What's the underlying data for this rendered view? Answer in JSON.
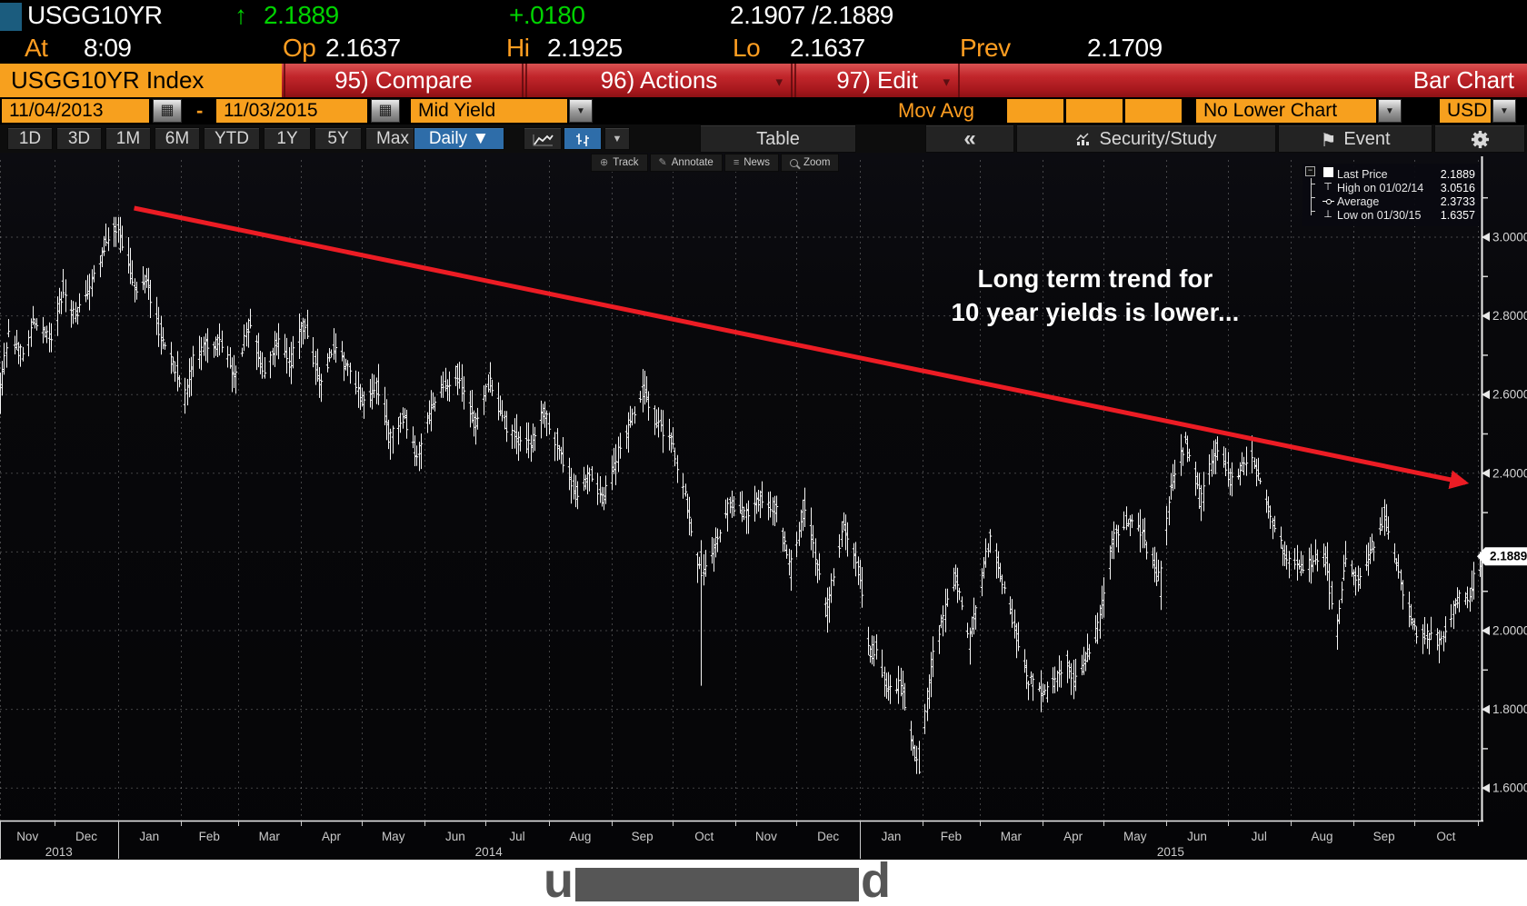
{
  "quote_bar": {
    "ticker": "USGG10YR",
    "direction_arrow": "↑",
    "last": "2.1889",
    "change": "+.0180",
    "bid_ask": "2.1907 /2.1889",
    "at_label": "At",
    "at_time": "8:09",
    "op_label": "Op",
    "open": "2.1637",
    "hi_label": "Hi",
    "high": "2.1925",
    "lo_label": "Lo",
    "low": "2.1637",
    "prev_label": "Prev",
    "prev": "2.1709"
  },
  "menu_bar": {
    "security_tab": "USGG10YR Index",
    "compare": "95) Compare",
    "actions": "96) Actions",
    "edit": "97) Edit",
    "right_label": "Bar Chart"
  },
  "settings_bar": {
    "date_from": "11/04/2013",
    "dash": "-",
    "date_to": "11/03/2015",
    "field": "Mid Yield",
    "mov_avg_label": "Mov Avg",
    "lower_chart": "No Lower Chart",
    "currency": "USD"
  },
  "toolbar": {
    "period_tabs": [
      "1D",
      "3D",
      "1M",
      "6M",
      "YTD",
      "1Y",
      "5Y",
      "Max"
    ],
    "frequency": "Daily ▼",
    "table_label": "Table",
    "collapse_label": "«",
    "security_study_label": "Security/Study",
    "event_label": "Event"
  },
  "chart_tools": [
    "Track",
    "Annotate",
    "News",
    "Zoom"
  ],
  "legend": {
    "items": [
      {
        "icon": "last-price-square",
        "label": "Last Price",
        "value": "2.1889"
      },
      {
        "icon": "high-tick",
        "label": "High on 01/02/14",
        "value": "3.0516"
      },
      {
        "icon": "average-marker",
        "label": "Average",
        "value": "2.3733"
      },
      {
        "icon": "low-tick",
        "label": "Low on 01/30/15",
        "value": "1.6357"
      }
    ]
  },
  "annotation": {
    "line1": "Long term trend for",
    "line2": "10 year yields is lower..."
  },
  "caption": {
    "left_char": "u",
    "right_char": "d"
  },
  "colors": {
    "orange": "#f7a01e",
    "orange_text": "#ff9e21",
    "green": "#00d300",
    "red_bar": "#c2262b",
    "blue": "#2e6da9",
    "bar_white": "#f5f5f5",
    "trend_red": "#ec1c24",
    "grid": "rgba(190,190,190,0.33)"
  },
  "chart_data": {
    "type": "bar",
    "subtype": "ohlc-daily",
    "title": "USGG10YR Index — Mid Yield, Daily, 11/04/2013 - 11/03/2015",
    "x_range": [
      "2013-11-04",
      "2015-11-03"
    ],
    "ylim": [
      1.52,
      3.12
    ],
    "y_major_ticks": [
      3.0,
      2.8,
      2.6,
      2.4,
      2.2,
      2.0,
      1.8,
      1.6
    ],
    "y_minor_ticks": [
      3.1,
      2.9,
      2.7,
      2.5,
      2.3,
      2.1,
      1.9,
      1.7
    ],
    "y_tick_format": "0.0000",
    "month_names": [
      "Jan",
      "Feb",
      "Mar",
      "Apr",
      "May",
      "Jun",
      "Jul",
      "Aug",
      "Sep",
      "Oct",
      "Nov",
      "Dec"
    ],
    "year_labels": [
      "2013",
      "2014",
      "2015"
    ],
    "grid": "dashed",
    "last_price": 2.1889,
    "stats": {
      "last": 2.1889,
      "high": 3.0516,
      "high_date": "2014-01-02",
      "average": 2.3733,
      "low": 1.6357,
      "low_date": "2015-01-30"
    },
    "trend_line": {
      "start": {
        "date": "2014-01-09",
        "value": 3.074
      },
      "end": {
        "date": "2015-10-26",
        "value": 2.376
      }
    },
    "key_days": {
      "2014-01-02": {
        "high": 3.0516,
        "low": 2.96,
        "open": 2.97,
        "close": 3.0
      },
      "2014-10-15": {
        "high": 2.23,
        "low": 1.86,
        "open": 2.2,
        "close": 2.14
      },
      "2015-01-30": {
        "high": 1.72,
        "low": 1.6357,
        "open": 1.7,
        "close": 1.64
      },
      "2015-11-03": {
        "open": 2.1637,
        "high": 2.1925,
        "low": 2.1637,
        "close": 2.1889
      }
    },
    "anchors": [
      [
        "2013-11-04",
        2.61
      ],
      [
        "2013-11-08",
        2.75
      ],
      [
        "2013-11-13",
        2.72
      ],
      [
        "2013-11-15",
        2.7
      ],
      [
        "2013-11-21",
        2.79
      ],
      [
        "2013-11-29",
        2.74
      ],
      [
        "2013-12-05",
        2.87
      ],
      [
        "2013-12-11",
        2.8
      ],
      [
        "2013-12-20",
        2.89
      ],
      [
        "2013-12-26",
        2.99
      ],
      [
        "2013-12-31",
        3.03
      ],
      [
        "2014-01-03",
        3.0
      ],
      [
        "2014-01-10",
        2.86
      ],
      [
        "2014-01-15",
        2.89
      ],
      [
        "2014-01-24",
        2.72
      ],
      [
        "2014-01-31",
        2.64
      ],
      [
        "2014-02-03",
        2.6
      ],
      [
        "2014-02-07",
        2.68
      ],
      [
        "2014-02-13",
        2.73
      ],
      [
        "2014-02-21",
        2.73
      ],
      [
        "2014-02-28",
        2.65
      ],
      [
        "2014-03-07",
        2.79
      ],
      [
        "2014-03-14",
        2.65
      ],
      [
        "2014-03-21",
        2.74
      ],
      [
        "2014-03-27",
        2.68
      ],
      [
        "2014-04-03",
        2.79
      ],
      [
        "2014-04-11",
        2.62
      ],
      [
        "2014-04-17",
        2.72
      ],
      [
        "2014-04-25",
        2.66
      ],
      [
        "2014-05-02",
        2.58
      ],
      [
        "2014-05-09",
        2.62
      ],
      [
        "2014-05-15",
        2.49
      ],
      [
        "2014-05-22",
        2.55
      ],
      [
        "2014-05-28",
        2.44
      ],
      [
        "2014-06-06",
        2.59
      ],
      [
        "2014-06-11",
        2.63
      ],
      [
        "2014-06-17",
        2.65
      ],
      [
        "2014-06-26",
        2.52
      ],
      [
        "2014-07-03",
        2.64
      ],
      [
        "2014-07-11",
        2.52
      ],
      [
        "2014-07-18",
        2.48
      ],
      [
        "2014-07-23",
        2.47
      ],
      [
        "2014-07-30",
        2.56
      ],
      [
        "2014-08-05",
        2.48
      ],
      [
        "2014-08-15",
        2.34
      ],
      [
        "2014-08-22",
        2.4
      ],
      [
        "2014-08-28",
        2.33
      ],
      [
        "2014-09-05",
        2.46
      ],
      [
        "2014-09-11",
        2.54
      ],
      [
        "2014-09-17",
        2.62
      ],
      [
        "2014-09-23",
        2.53
      ],
      [
        "2014-09-30",
        2.49
      ],
      [
        "2014-10-03",
        2.43
      ],
      [
        "2014-10-08",
        2.33
      ],
      [
        "2014-10-15",
        2.14
      ],
      [
        "2014-10-22",
        2.22
      ],
      [
        "2014-10-29",
        2.32
      ],
      [
        "2014-11-07",
        2.3
      ],
      [
        "2014-11-13",
        2.34
      ],
      [
        "2014-11-21",
        2.31
      ],
      [
        "2014-11-28",
        2.16
      ],
      [
        "2014-12-05",
        2.31
      ],
      [
        "2014-12-16",
        2.06
      ],
      [
        "2014-12-24",
        2.26
      ],
      [
        "2014-12-31",
        2.17
      ],
      [
        "2015-01-06",
        1.94
      ],
      [
        "2015-01-09",
        1.95
      ],
      [
        "2015-01-14",
        1.86
      ],
      [
        "2015-01-22",
        1.86
      ],
      [
        "2015-01-30",
        1.64
      ],
      [
        "2015-02-06",
        1.94
      ],
      [
        "2015-02-17",
        2.14
      ],
      [
        "2015-02-24",
        1.98
      ],
      [
        "2015-03-06",
        2.24
      ],
      [
        "2015-03-13",
        2.11
      ],
      [
        "2015-03-25",
        1.88
      ],
      [
        "2015-04-03",
        1.84
      ],
      [
        "2015-04-13",
        1.93
      ],
      [
        "2015-04-17",
        1.87
      ],
      [
        "2015-04-28",
        2.0
      ],
      [
        "2015-05-06",
        2.24
      ],
      [
        "2015-05-12",
        2.28
      ],
      [
        "2015-05-19",
        2.26
      ],
      [
        "2015-05-29",
        2.12
      ],
      [
        "2015-06-03",
        2.36
      ],
      [
        "2015-06-10",
        2.48
      ],
      [
        "2015-06-18",
        2.33
      ],
      [
        "2015-06-26",
        2.47
      ],
      [
        "2015-07-03",
        2.38
      ],
      [
        "2015-07-13",
        2.45
      ],
      [
        "2015-07-24",
        2.26
      ],
      [
        "2015-07-31",
        2.18
      ],
      [
        "2015-08-07",
        2.16
      ],
      [
        "2015-08-18",
        2.19
      ],
      [
        "2015-08-24",
        2.0
      ],
      [
        "2015-08-28",
        2.18
      ],
      [
        "2015-09-04",
        2.12
      ],
      [
        "2015-09-16",
        2.29
      ],
      [
        "2015-09-24",
        2.13
      ],
      [
        "2015-10-02",
        1.99
      ],
      [
        "2015-10-14",
        1.98
      ],
      [
        "2015-10-23",
        2.08
      ],
      [
        "2015-10-28",
        2.09
      ],
      [
        "2015-11-02",
        2.17
      ],
      [
        "2015-11-03",
        2.19
      ]
    ]
  }
}
